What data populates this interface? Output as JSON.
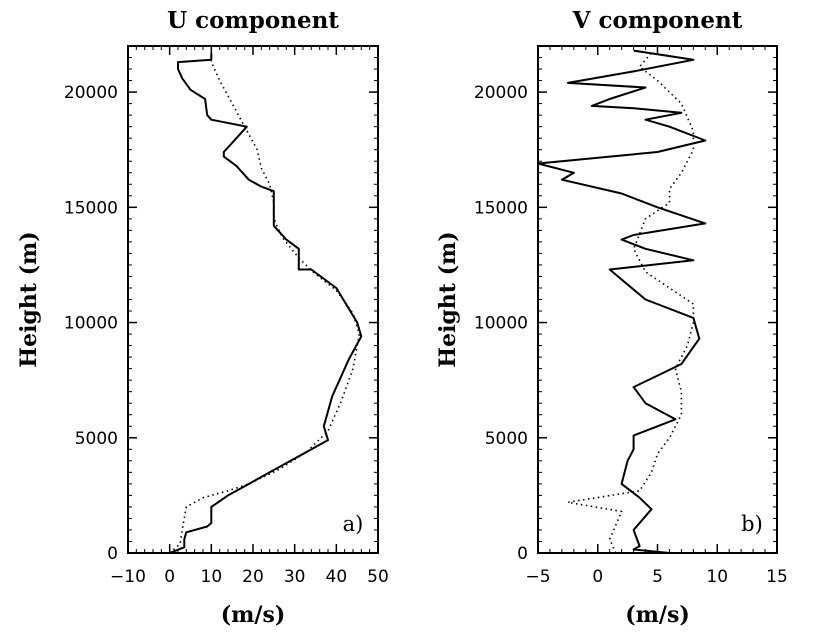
{
  "chart_data": [
    {
      "type": "line",
      "title": "U component",
      "xlabel": "(m/s)",
      "ylabel": "Height  (m)",
      "panel_label": "a)",
      "xlim": [
        -10,
        50
      ],
      "ylim": [
        0,
        22000
      ],
      "xticks": [
        -10,
        0,
        10,
        20,
        30,
        40,
        50
      ],
      "yticks": [
        0,
        5000,
        10000,
        15000,
        20000
      ],
      "xtick_labels": [
        "−10",
        "0",
        "10",
        "20",
        "30",
        "40",
        "50"
      ],
      "ytick_labels": [
        "0",
        "5000",
        "10000",
        "15000",
        "20000"
      ],
      "grid": false,
      "series": [
        {
          "style": "solid",
          "points": [
            [
              0,
              0
            ],
            [
              3.5,
              250
            ],
            [
              3.5,
              600
            ],
            [
              4,
              900
            ],
            [
              9,
              1150
            ],
            [
              10,
              1300
            ],
            [
              10,
              2000
            ],
            [
              14,
              2500
            ],
            [
              18,
              2900
            ],
            [
              24,
              3500
            ],
            [
              31,
              4200
            ],
            [
              38,
              4900
            ],
            [
              37,
              5500
            ],
            [
              39,
              6800
            ],
            [
              43,
              8400
            ],
            [
              46,
              9400
            ],
            [
              45,
              10000
            ],
            [
              40,
              11500
            ],
            [
              34,
              12300
            ],
            [
              31,
              12300
            ],
            [
              31,
              13200
            ],
            [
              28,
              13600
            ],
            [
              25,
              14200
            ],
            [
              25,
              15700
            ],
            [
              22,
              15900
            ],
            [
              19,
              16200
            ],
            [
              16,
              16800
            ],
            [
              13,
              17200
            ],
            [
              13,
              17400
            ],
            [
              15,
              17800
            ],
            [
              18.5,
              18500
            ],
            [
              10,
              18800
            ],
            [
              9,
              19000
            ],
            [
              8.5,
              19700
            ],
            [
              5,
              20100
            ],
            [
              3,
              20600
            ],
            [
              2,
              21000
            ],
            [
              2,
              21300
            ],
            [
              10,
              21400
            ],
            [
              10,
              21700
            ]
          ]
        },
        {
          "style": "dotted",
          "points": [
            [
              0,
              0
            ],
            [
              2.5,
              400
            ],
            [
              3,
              1000
            ],
            [
              4,
              2000
            ],
            [
              8,
              2400
            ],
            [
              14,
              2700
            ],
            [
              19,
              3000
            ],
            [
              26,
              3600
            ],
            [
              33,
              4400
            ],
            [
              38,
              5300
            ],
            [
              41,
              6500
            ],
            [
              44,
              8000
            ],
            [
              45.5,
              9500
            ],
            [
              44,
              10400
            ],
            [
              40,
              11400
            ],
            [
              35,
              12100
            ],
            [
              31,
              12800
            ],
            [
              27,
              13700
            ],
            [
              25,
              14500
            ],
            [
              25,
              15200
            ],
            [
              24,
              16000
            ],
            [
              22,
              16700
            ],
            [
              21,
              17500
            ],
            [
              18,
              18500
            ],
            [
              15,
              19500
            ],
            [
              12,
              20500
            ],
            [
              10,
              21300
            ],
            [
              10,
              21700
            ]
          ]
        }
      ]
    },
    {
      "type": "line",
      "title": "V component",
      "xlabel": "(m/s)",
      "ylabel": "Height  (m)",
      "panel_label": "b)",
      "xlim": [
        -5,
        15
      ],
      "ylim": [
        0,
        22000
      ],
      "xticks": [
        -5,
        0,
        5,
        10,
        15
      ],
      "yticks": [
        0,
        5000,
        10000,
        15000,
        20000
      ],
      "xtick_labels": [
        "−5",
        "0",
        "5",
        "10",
        "15"
      ],
      "ytick_labels": [
        "0",
        "5000",
        "10000",
        "15000",
        "20000"
      ],
      "grid": false,
      "series": [
        {
          "style": "solid",
          "points": [
            [
              6,
              0
            ],
            [
              3,
              150
            ],
            [
              3.5,
              300
            ],
            [
              3,
              1000
            ],
            [
              4.5,
              1900
            ],
            [
              3.5,
              2400
            ],
            [
              2,
              3000
            ],
            [
              2.5,
              4000
            ],
            [
              3,
              4500
            ],
            [
              3,
              5100
            ],
            [
              5,
              5500
            ],
            [
              6.5,
              5800
            ],
            [
              4,
              6500
            ],
            [
              3,
              7200
            ],
            [
              5,
              7700
            ],
            [
              7,
              8200
            ],
            [
              8.5,
              9300
            ],
            [
              8,
              10200
            ],
            [
              4,
              11000
            ],
            [
              1,
              12300
            ],
            [
              8,
              12700
            ],
            [
              4,
              13200
            ],
            [
              2,
              13600
            ],
            [
              3,
              13800
            ],
            [
              9,
              14300
            ],
            [
              5,
              15000
            ],
            [
              2,
              15600
            ],
            [
              -3,
              16200
            ],
            [
              -2,
              16500
            ],
            [
              -5,
              16900
            ],
            [
              5,
              17400
            ],
            [
              9,
              17900
            ],
            [
              6,
              18500
            ],
            [
              4,
              18800
            ],
            [
              7,
              19100
            ],
            [
              3,
              19300
            ],
            [
              -0.5,
              19400
            ],
            [
              1,
              19700
            ],
            [
              4,
              20200
            ],
            [
              -2.5,
              20400
            ],
            [
              3,
              20900
            ],
            [
              8,
              21400
            ],
            [
              3,
              21800
            ]
          ]
        },
        {
          "style": "dotted",
          "points": [
            [
              1.5,
              0
            ],
            [
              1,
              600
            ],
            [
              1.5,
              1200
            ],
            [
              2,
              1800
            ],
            [
              -2.5,
              2200
            ],
            [
              3.5,
              2700
            ],
            [
              4.5,
              3500
            ],
            [
              5,
              4300
            ],
            [
              6,
              5000
            ],
            [
              7,
              6000
            ],
            [
              7,
              7000
            ],
            [
              6.5,
              8000
            ],
            [
              7.5,
              9000
            ],
            [
              8,
              10000
            ],
            [
              8,
              10800
            ],
            [
              6,
              11500
            ],
            [
              4,
              12200
            ],
            [
              3,
              13200
            ],
            [
              4,
              14500
            ],
            [
              6,
              15200
            ],
            [
              6,
              15800
            ],
            [
              7,
              16500
            ],
            [
              8,
              17500
            ],
            [
              8,
              18300
            ],
            [
              7,
              19500
            ],
            [
              5,
              20500
            ],
            [
              3.5,
              21100
            ],
            [
              4.5,
              21700
            ]
          ]
        }
      ]
    }
  ]
}
